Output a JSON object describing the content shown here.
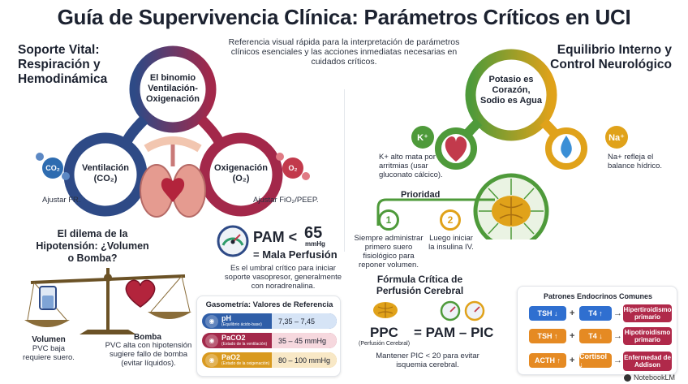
{
  "title": "Guía de Supervivencia Clínica: Parámetros Críticos en UCI",
  "subtitle": "Referencia visual rápida para la interpretación de parámetros clínicos esenciales y las acciones inmediatas necesarias en cuidados críticos.",
  "left_section": {
    "title": "Soporte Vital: Respiración y Hemodinámica",
    "binomio": "El binomio Ventilación-Oxigenación",
    "ventilacion": "Ventilación (CO₂)",
    "oxigenacion": "Oxigenación (O₂)",
    "co2_icon": "CO₂",
    "o2_icon": "O₂",
    "ajustar_fr": "Ajustar FR.",
    "ajustar_fio2": "Ajustar FiO₂/PEEP.",
    "dilema": "El dilema de la Hipotensión: ¿Volumen o Bomba?",
    "volumen_title": "Volumen",
    "volumen_text": "PVC baja requiere suero.",
    "bomba_title": "Bomba",
    "bomba_text": "PVC alta con hipotensión sugiere fallo de bomba (evitar líquidos).",
    "pam_label": "PAM <",
    "pam_value": "65",
    "pam_unit": "mmHg",
    "mala_perfusion": "= Mala Perfusión",
    "pam_text": "Es el umbral crítico para iniciar soporte vasopresor, generalmente con noradrenalina."
  },
  "gasometria": {
    "title": "Gasometría: Valores de Referencia",
    "rows": [
      {
        "param": "pH",
        "sub": "(Equilibrio ácido-base)",
        "value": "7,35 – 7,45",
        "color": "#2f5ea8",
        "light": "#d6e4f6"
      },
      {
        "param": "PaCO2",
        "sub": "(Estado de la ventilación)",
        "value": "35 – 45 mmHg",
        "color": "#a3284a",
        "light": "#f6d8de"
      },
      {
        "param": "PaO2",
        "sub": "(Estado de la oxigenación)",
        "value": "80 – 100 mmHg",
        "color": "#d99a1f",
        "light": "#f8e8c6"
      }
    ]
  },
  "right_section": {
    "title": "Equilibrio Interno y Control Neurológico",
    "potasio": "Potasio es Corazón, Sodio es Agua",
    "k_icon": "K⁺",
    "na_icon": "Na⁺",
    "k_text": "K+ alto mata por arritmias (usar gluconato cálcico).",
    "na_text": "Na+ refleja el balance hídrico.",
    "prioridad": "Prioridad",
    "step1_num": "1",
    "step1_text": "Siempre administrar primero suero fisiológico para reponer volumen.",
    "step2_num": "2",
    "step2_text": "Luego iniciar la insulina IV."
  },
  "perfusion": {
    "title": "Fórmula Crítica de Perfusión Cerebral",
    "ppc": "PPC",
    "ppc_sub": "(Perfusión Cerebral)",
    "formula": "= PAM – PIC",
    "note": "Mantener PIC < 20 para evitar isquemia cerebral."
  },
  "endocrino": {
    "title": "Patrones Endocrinos Comunes",
    "rows": [
      {
        "a": "TSH ↓",
        "b": "T4 ↑",
        "result": "Hipertiroidismo primario",
        "color": "#2f6fd0",
        "res_color": "#b0294a"
      },
      {
        "a": "TSH ↑",
        "b": "T4 ↓",
        "result": "Hipotiroidismo primario",
        "color": "#e58a23",
        "res_color": "#b0294a"
      },
      {
        "a": "ACTH ↑",
        "b": "Cortisol ↓",
        "result": "Enfermedad de Addison",
        "color": "#e58a23",
        "res_color": "#b0294a"
      }
    ]
  },
  "footer": "NotebookLM",
  "colors": {
    "navy": "#2e4a86",
    "crimson": "#a3284a",
    "green": "#4e9a3a",
    "gold": "#e0a21a"
  }
}
